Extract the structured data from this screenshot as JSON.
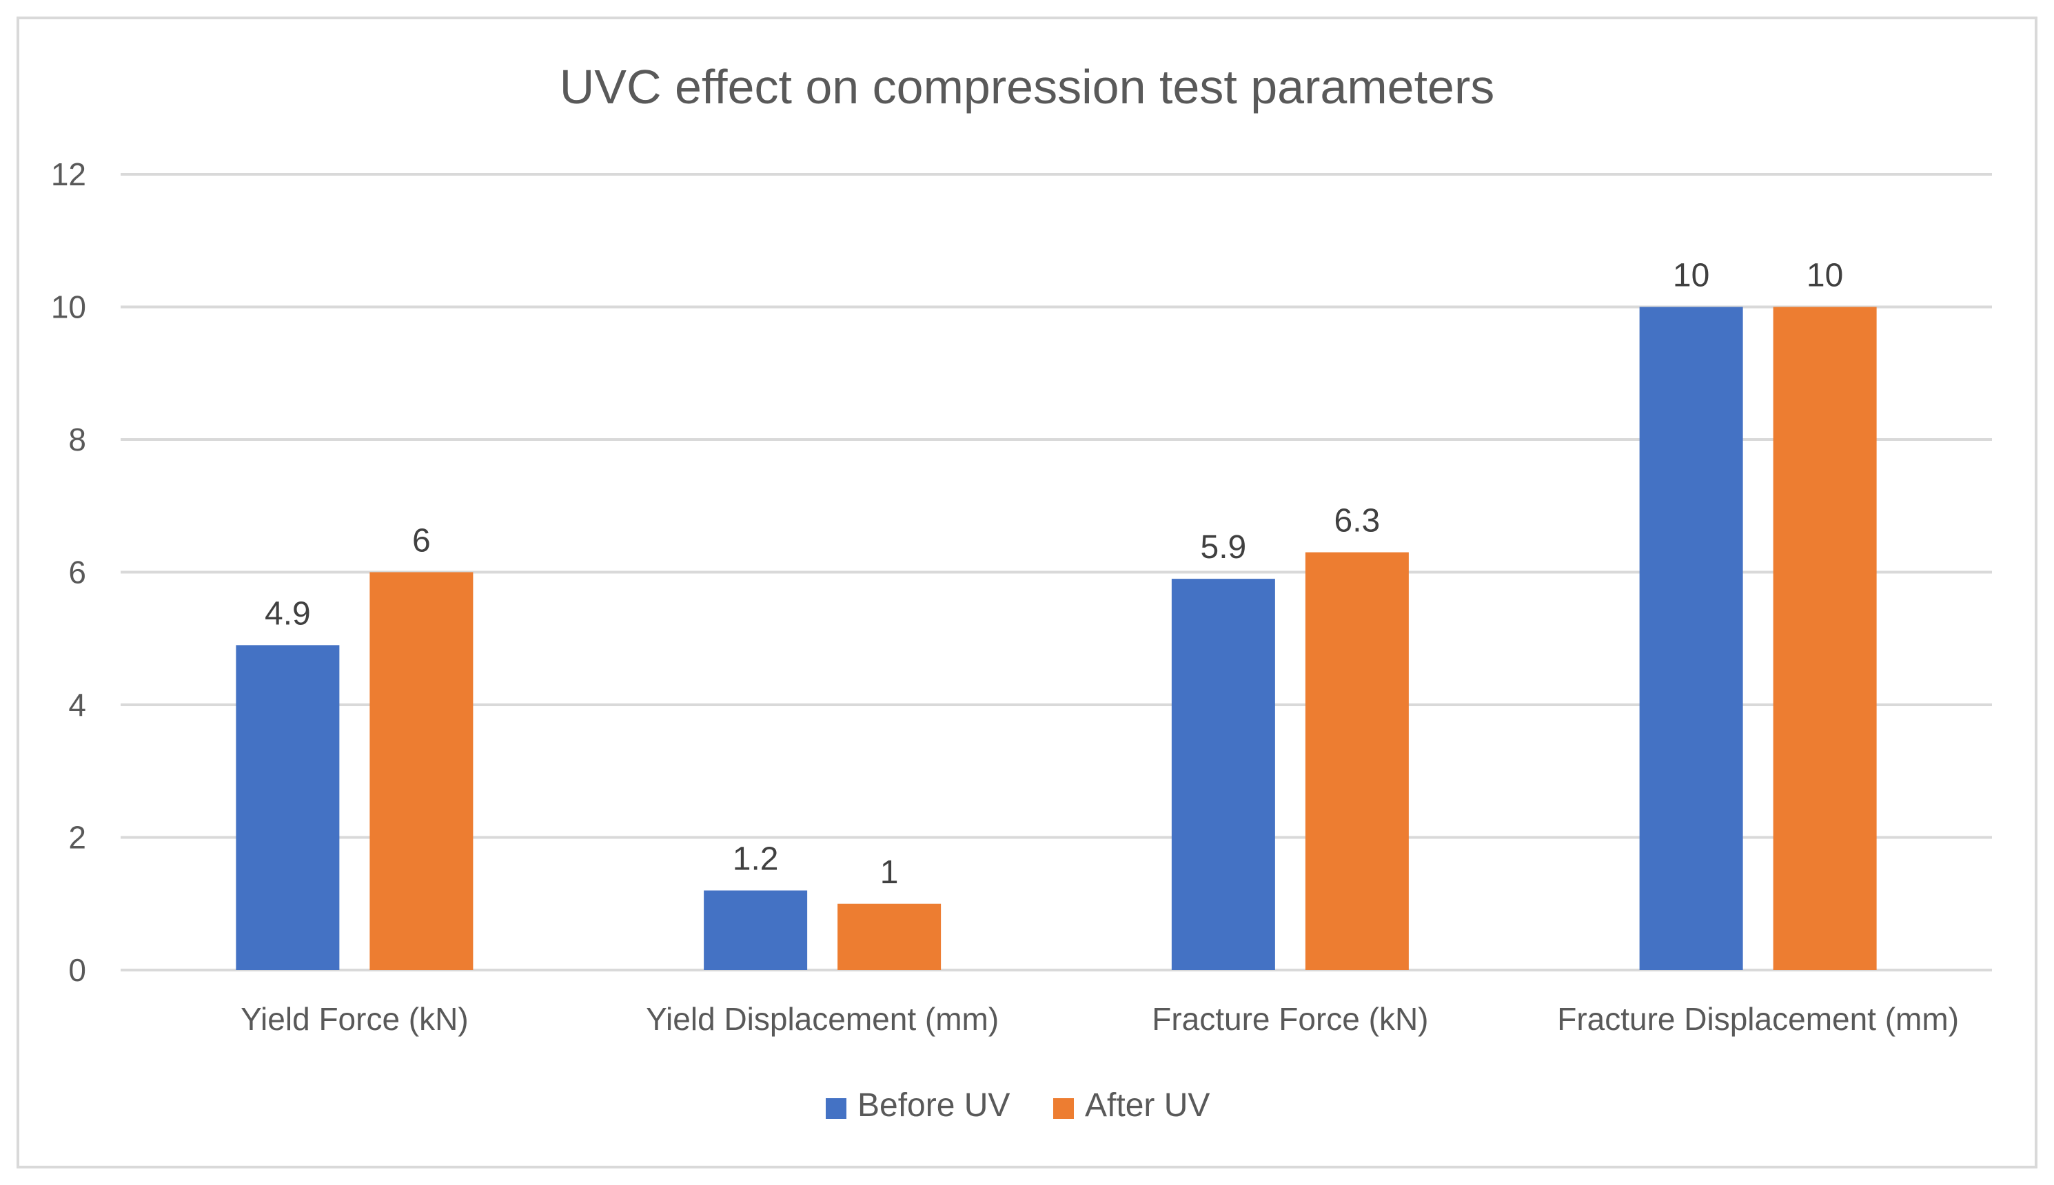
{
  "chart_data": {
    "type": "bar",
    "title": "UVC effect on compression test parameters",
    "xlabel": "",
    "ylabel": "",
    "ylim": [
      0,
      12
    ],
    "yticks": [
      0,
      2,
      4,
      6,
      8,
      10,
      12
    ],
    "grid": true,
    "legend_position": "bottom",
    "categories": [
      "Yield Force (kN)",
      "Yield Displacement (mm)",
      "Fracture Force (kN)",
      "Fracture Displacement (mm)"
    ],
    "series": [
      {
        "name": "Before UV",
        "color": "#4472C4",
        "values": [
          4.9,
          1.2,
          5.9,
          10
        ],
        "labels": [
          "4.9",
          "1.2",
          "5.9",
          "10"
        ]
      },
      {
        "name": "After UV",
        "color": "#ED7D31",
        "values": [
          6,
          1,
          6.3,
          10
        ],
        "labels": [
          "6",
          "1",
          "6.3",
          "10"
        ]
      }
    ]
  }
}
